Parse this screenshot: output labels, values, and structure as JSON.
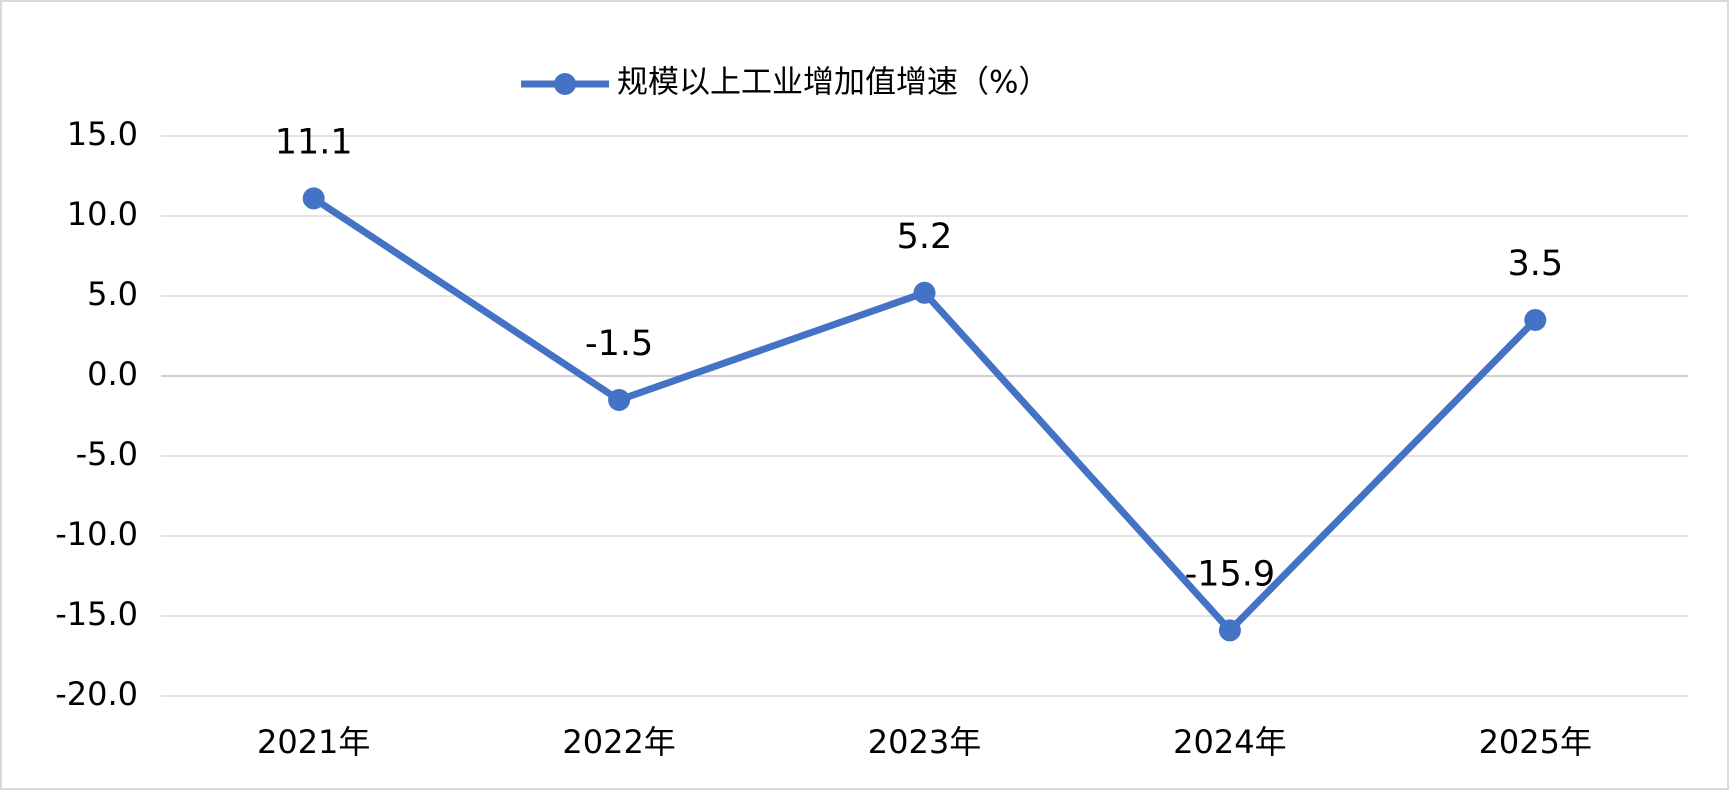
{
  "chart_data": {
    "type": "line",
    "categories": [
      "2021年",
      "2022年",
      "2023年",
      "2024年",
      "2025年"
    ],
    "series": [
      {
        "name": "规模以上工业增加值增速（%）",
        "color": "#4472c4",
        "values": [
          11.1,
          -1.5,
          5.2,
          -15.9,
          3.5
        ]
      }
    ],
    "ylim": [
      -20,
      15
    ],
    "yticks": [
      {
        "value": -20,
        "label": "-20.0"
      },
      {
        "value": -15,
        "label": "-15.0"
      },
      {
        "value": -10,
        "label": "-10.0"
      },
      {
        "value": -5,
        "label": "-5.0"
      },
      {
        "value": 0,
        "label": "0.0"
      },
      {
        "value": 5,
        "label": "5.0"
      },
      {
        "value": 10,
        "label": "10.0"
      },
      {
        "value": 15,
        "label": "15.0"
      }
    ],
    "grid": true,
    "legend": "top"
  }
}
